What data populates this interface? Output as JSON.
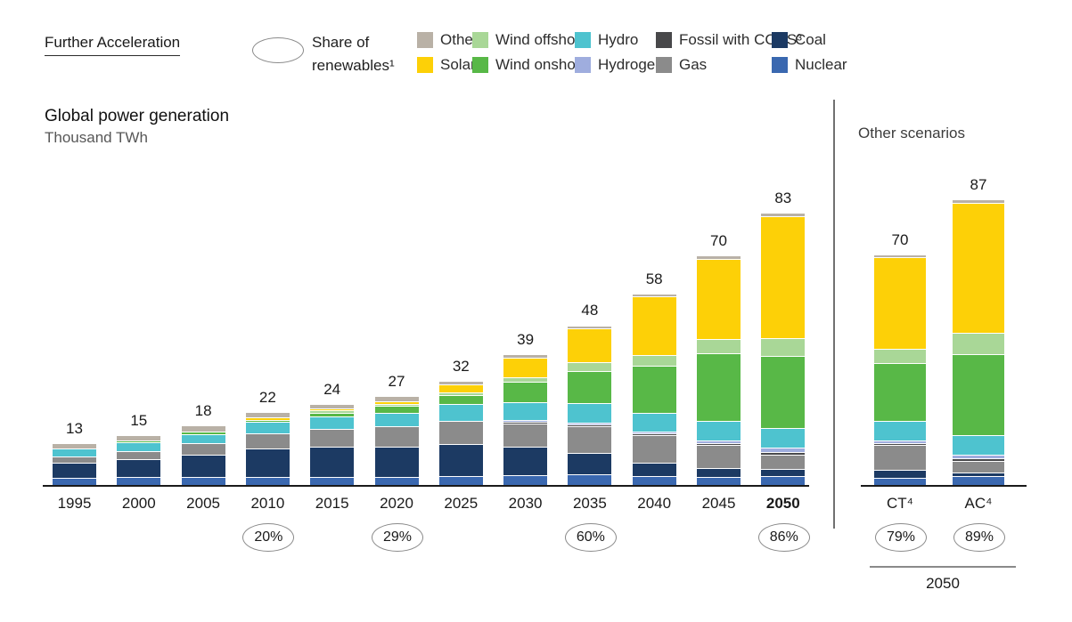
{
  "header": {
    "scenario_label": "Further Acceleration",
    "share_icon": "ellipse-icon",
    "share_label_line1": "Share of",
    "share_label_line2": "renewables¹"
  },
  "legend": {
    "items": [
      {
        "label": "Other²",
        "color": "#b9b1a6"
      },
      {
        "label": "Solar",
        "color": "#fdd007"
      },
      {
        "label": "Wind offshore",
        "color": "#a9d797"
      },
      {
        "label": "Wind onshore",
        "color": "#58b847"
      },
      {
        "label": "Hydro",
        "color": "#4ec3cf"
      },
      {
        "label": "Hydrogen",
        "color": "#9fadde"
      },
      {
        "label": "Fossil with CCUS³",
        "color": "#48484a"
      },
      {
        "label": "Gas",
        "color": "#8b8b8b"
      },
      {
        "label": "Coal",
        "color": "#1c3a63"
      },
      {
        "label": "Nuclear",
        "color": "#3a68b0"
      }
    ]
  },
  "chart": {
    "title": "Global power generation",
    "subtitle": "Thousand TWh",
    "scenarios_title": "Other scenarios"
  },
  "chart_data": {
    "type": "bar",
    "stacked": true,
    "title": "Global power generation",
    "ylabel": "Thousand TWh",
    "grid": false,
    "legend_position": "top",
    "categories": [
      "1995",
      "2000",
      "2005",
      "2010",
      "2015",
      "2020",
      "2025",
      "2030",
      "2035",
      "2040",
      "2045",
      "2050"
    ],
    "emphasis_category": "2050",
    "totals": [
      13,
      15,
      18,
      22,
      24,
      27,
      32,
      39,
      48,
      58,
      70,
      83
    ],
    "series": [
      {
        "name": "Nuclear",
        "color": "#3a68b0",
        "values": [
          2.3,
          2.6,
          2.8,
          2.8,
          2.6,
          2.7,
          3.0,
          3.3,
          3.6,
          2.9,
          2.6,
          3.0
        ]
      },
      {
        "name": "Coal",
        "color": "#1c3a63",
        "values": [
          4.6,
          5.4,
          6.6,
          8.5,
          9.2,
          9.2,
          9.6,
          8.6,
          6.5,
          4.2,
          2.9,
          2.1
        ]
      },
      {
        "name": "Gas",
        "color": "#8b8b8b",
        "values": [
          2.0,
          2.6,
          3.5,
          4.7,
          5.5,
          6.1,
          7.0,
          6.9,
          8.0,
          8.2,
          7.0,
          4.4
        ]
      },
      {
        "name": "Fossil with CCUS³",
        "color": "#48484a",
        "values": [
          0,
          0,
          0,
          0,
          0,
          0,
          0,
          0.1,
          0.2,
          0.4,
          0.6,
          0.9
        ]
      },
      {
        "name": "Hydrogen",
        "color": "#9fadde",
        "values": [
          0,
          0,
          0,
          0,
          0,
          0,
          0,
          0.1,
          0.2,
          0.5,
          0.8,
          1.2
        ]
      },
      {
        "name": "Hydro",
        "color": "#4ec3cf",
        "values": [
          2.5,
          2.7,
          2.9,
          3.4,
          3.9,
          4.3,
          5.3,
          5.4,
          5.8,
          5.7,
          5.9,
          6.0
        ]
      },
      {
        "name": "Wind onshore",
        "color": "#58b847",
        "values": [
          0,
          0.1,
          0.2,
          0.7,
          1.1,
          1.9,
          2.7,
          6.3,
          9.9,
          14.4,
          20.4,
          21.8
        ]
      },
      {
        "name": "Wind offshore",
        "color": "#a9d797",
        "values": [
          0,
          0,
          0,
          0,
          0.1,
          0.2,
          0.7,
          1.2,
          2.6,
          3.2,
          4.3,
          5.6
        ]
      },
      {
        "name": "Solar",
        "color": "#fdd007",
        "values": [
          0,
          0,
          0,
          0.1,
          0.3,
          0.9,
          2.4,
          6.1,
          10.2,
          17.7,
          24.5,
          37.0
        ]
      },
      {
        "name": "Other²",
        "color": "#b9b1a6",
        "values": [
          1.6,
          1.6,
          2.0,
          1.8,
          1.3,
          1.7,
          1.3,
          1.0,
          1.0,
          0.8,
          1.0,
          1.0
        ]
      }
    ],
    "renewables_share": [
      {
        "category": "2010",
        "value": "20%"
      },
      {
        "category": "2020",
        "value": "29%"
      },
      {
        "category": "2035",
        "value": "60%"
      },
      {
        "category": "2050",
        "value": "86%"
      }
    ],
    "scenarios": {
      "title": "Other scenarios",
      "categories": [
        "CT⁴",
        "AC⁴"
      ],
      "totals": [
        70,
        87
      ],
      "series": [
        {
          "name": "Nuclear",
          "color": "#3a68b0",
          "values": [
            2.5,
            2.9
          ]
        },
        {
          "name": "Coal",
          "color": "#1c3a63",
          "values": [
            2.4,
            1.2
          ]
        },
        {
          "name": "Gas",
          "color": "#8b8b8b",
          "values": [
            7.6,
            3.4
          ]
        },
        {
          "name": "Fossil with CCUS³",
          "color": "#48484a",
          "values": [
            0.4,
            0.8
          ]
        },
        {
          "name": "Hydrogen",
          "color": "#9fadde",
          "values": [
            0.4,
            1.1
          ]
        },
        {
          "name": "Hydro",
          "color": "#4ec3cf",
          "values": [
            6.0,
            6.1
          ]
        },
        {
          "name": "Wind onshore",
          "color": "#58b847",
          "values": [
            17.5,
            24.4
          ]
        },
        {
          "name": "Wind offshore",
          "color": "#a9d797",
          "values": [
            4.4,
            6.6
          ]
        },
        {
          "name": "Solar",
          "color": "#fdd007",
          "values": [
            27.8,
            39.5
          ]
        },
        {
          "name": "Other²",
          "color": "#b9b1a6",
          "values": [
            1.0,
            1.0
          ]
        }
      ],
      "shares": [
        "79%",
        "89%"
      ],
      "axis_label": "2050"
    }
  }
}
